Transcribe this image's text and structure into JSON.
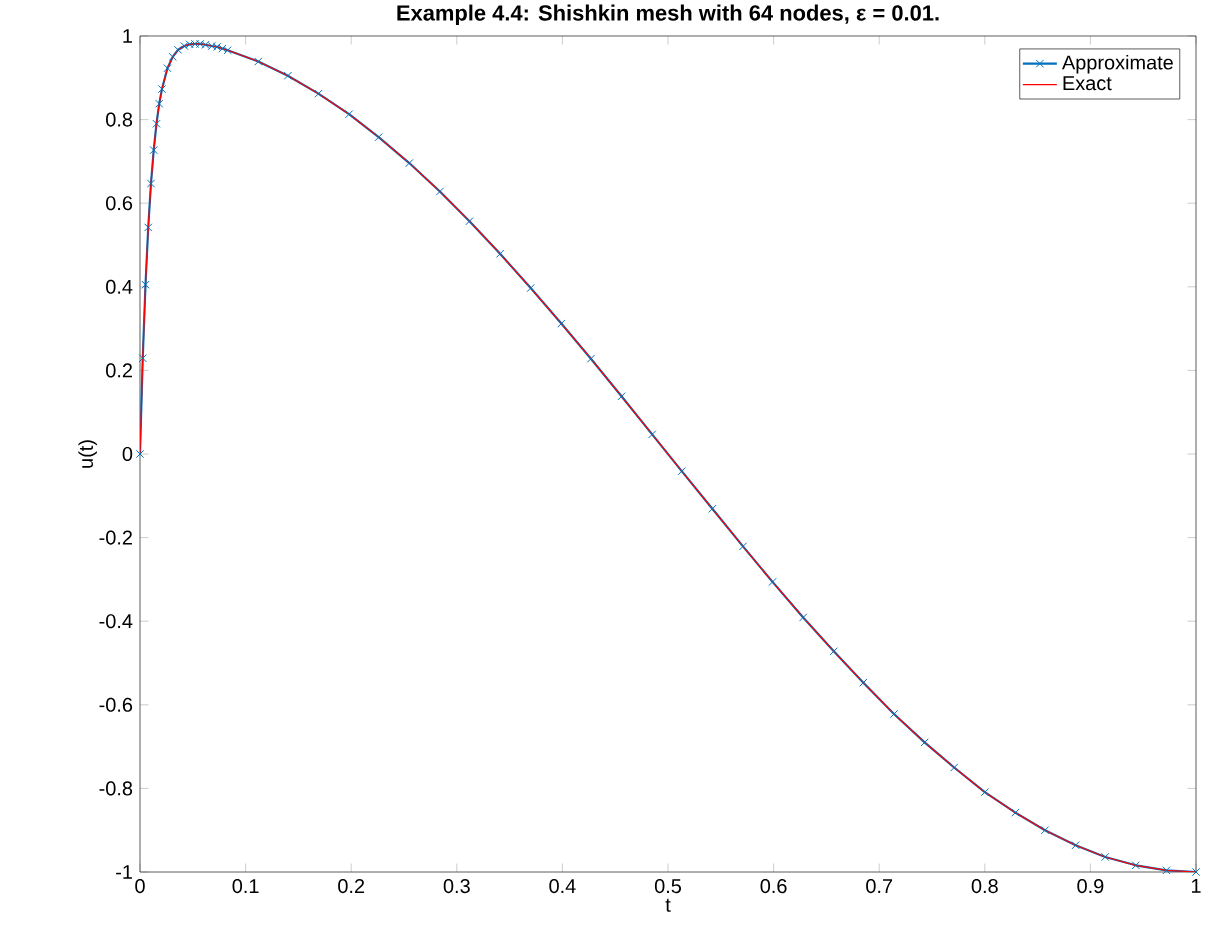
{
  "chart_data": {
    "type": "line",
    "title": "Example 4.4: Shishkin mesh with 64 nodes, ε = 0.01.",
    "xlabel": "t",
    "ylabel": "u(t)",
    "x": [
      0,
      0.0026,
      0.0052,
      0.0078,
      0.0104,
      0.013,
      0.0156,
      0.0182,
      0.0208,
      0.026,
      0.031,
      0.036,
      0.042,
      0.047,
      0.052,
      0.057,
      0.062,
      0.068,
      0.073,
      0.078,
      0.083,
      0.112,
      0.14,
      0.169,
      0.198,
      0.226,
      0.255,
      0.284,
      0.312,
      0.341,
      0.37,
      0.399,
      0.427,
      0.456,
      0.485,
      0.513,
      0.542,
      0.571,
      0.599,
      0.628,
      0.657,
      0.685,
      0.714,
      0.743,
      0.771,
      0.8,
      0.829,
      0.857,
      0.886,
      0.914,
      0.943,
      0.972,
      1.0
    ],
    "series": [
      {
        "name": "Approximate",
        "color": "#0072bd",
        "marker": "cross",
        "values": [
          0,
          0.229,
          0.405,
          0.542,
          0.647,
          0.727,
          0.79,
          0.838,
          0.873,
          0.923,
          0.95,
          0.967,
          0.976,
          0.98,
          0.981,
          0.981,
          0.979,
          0.976,
          0.974,
          0.97,
          0.966,
          0.939,
          0.905,
          0.862,
          0.813,
          0.758,
          0.696,
          0.628,
          0.557,
          0.479,
          0.397,
          0.312,
          0.228,
          0.138,
          0.047,
          -0.041,
          -0.131,
          -0.221,
          -0.306,
          -0.391,
          -0.472,
          -0.547,
          -0.622,
          -0.69,
          -0.75,
          -0.809,
          -0.858,
          -0.9,
          -0.936,
          -0.964,
          -0.984,
          -0.996,
          -1.0
        ]
      },
      {
        "name": "Exact",
        "color": "#ff0000",
        "marker": "none",
        "values": [
          0,
          0.229,
          0.405,
          0.542,
          0.647,
          0.727,
          0.79,
          0.838,
          0.873,
          0.923,
          0.95,
          0.967,
          0.976,
          0.98,
          0.981,
          0.981,
          0.979,
          0.976,
          0.974,
          0.97,
          0.966,
          0.939,
          0.905,
          0.862,
          0.813,
          0.758,
          0.696,
          0.628,
          0.557,
          0.479,
          0.397,
          0.312,
          0.228,
          0.138,
          0.047,
          -0.041,
          -0.131,
          -0.221,
          -0.306,
          -0.391,
          -0.472,
          -0.547,
          -0.622,
          -0.69,
          -0.75,
          -0.809,
          -0.858,
          -0.9,
          -0.936,
          -0.964,
          -0.984,
          -0.996,
          -1.0
        ]
      }
    ],
    "xlim": [
      0,
      1
    ],
    "ylim": [
      -1,
      1
    ],
    "xticks": [
      0,
      0.1,
      0.2,
      0.3,
      0.4,
      0.5,
      0.6,
      0.7,
      0.8,
      0.9,
      1
    ],
    "yticks": [
      -1,
      -0.8,
      -0.6,
      -0.4,
      -0.2,
      0,
      0.2,
      0.4,
      0.6,
      0.8,
      1
    ],
    "legend": "top right",
    "grid": false,
    "line_style": "solid"
  }
}
